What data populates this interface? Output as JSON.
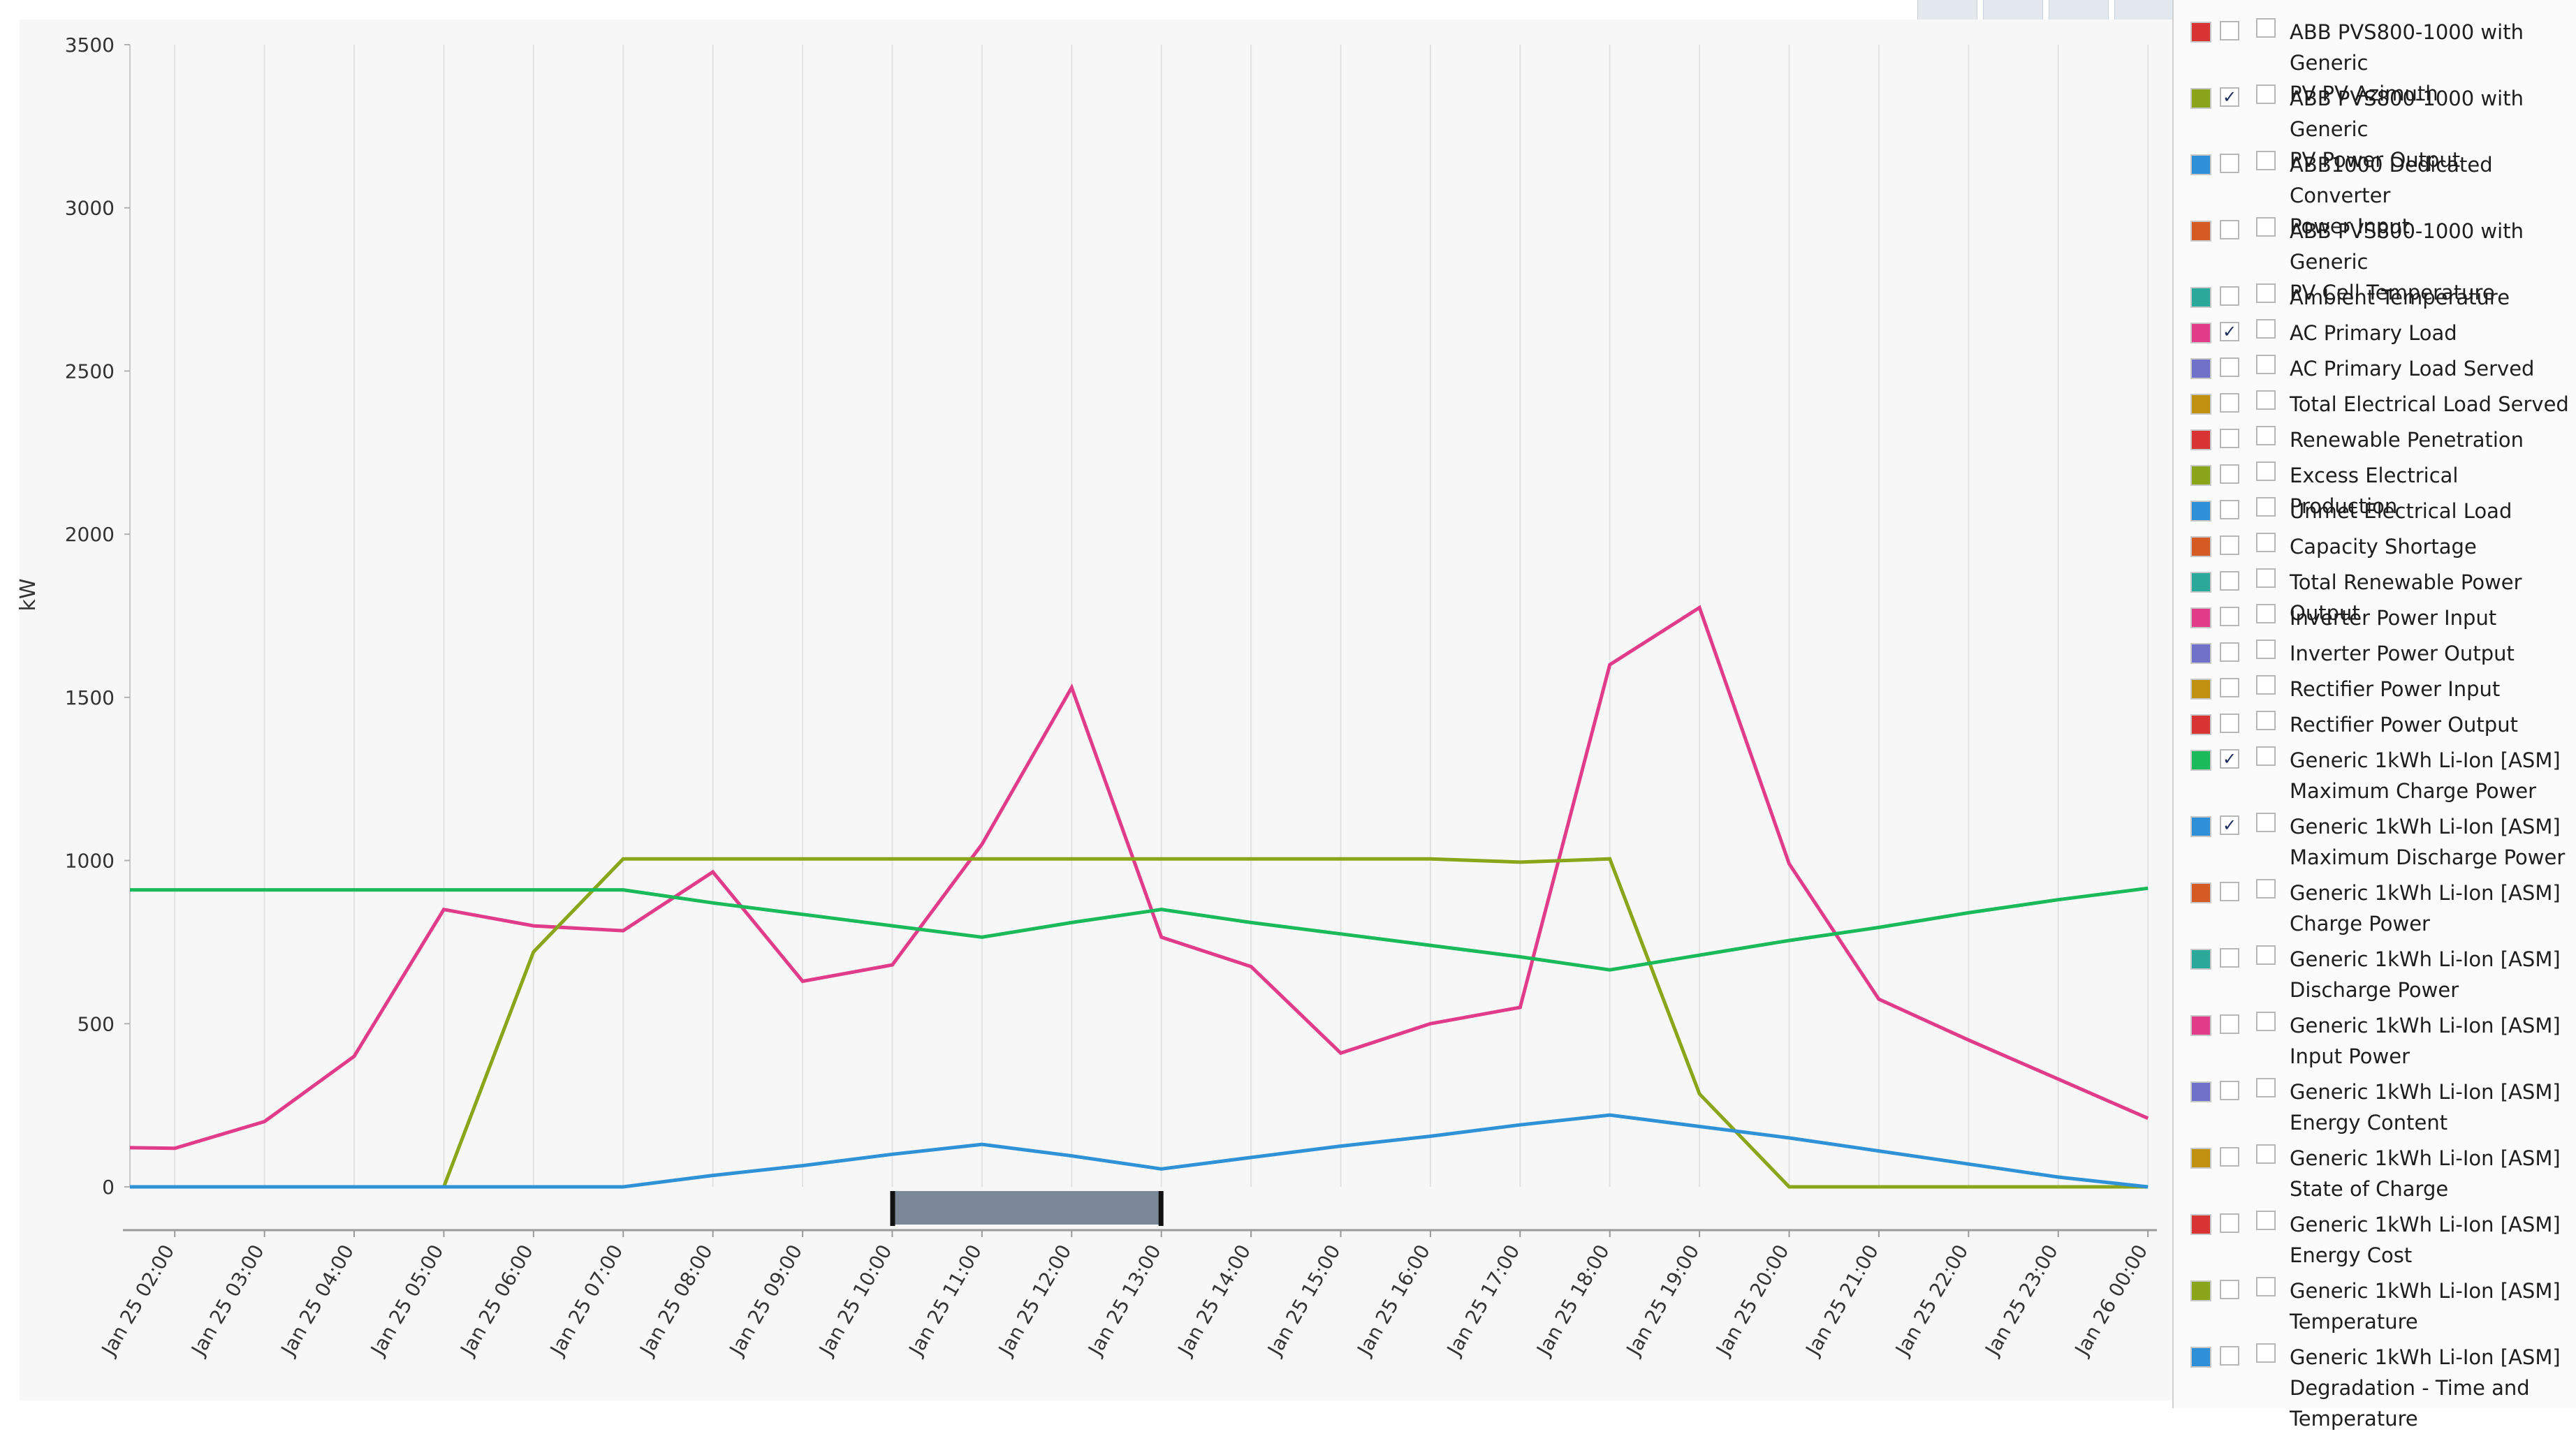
{
  "chart_data": {
    "type": "line",
    "ylabel": "kW",
    "ylim": [
      0,
      3500
    ],
    "yticks": [
      0,
      500,
      1000,
      1500,
      2000,
      2500,
      3000,
      3500
    ],
    "x": [
      1.5,
      2,
      3,
      4,
      5,
      6,
      7,
      8,
      9,
      10,
      11,
      12,
      13,
      14,
      15,
      16,
      17,
      18,
      19,
      20,
      21,
      22,
      23,
      24
    ],
    "xlim": [
      1.5,
      24.1
    ],
    "xtick_positions": [
      2,
      3,
      4,
      5,
      6,
      7,
      8,
      9,
      10,
      11,
      12,
      13,
      14,
      15,
      16,
      17,
      18,
      19,
      20,
      21,
      22,
      23,
      24
    ],
    "xtick_labels": [
      "Jan 25 02:00",
      "Jan 25 03:00",
      "Jan 25 04:00",
      "Jan 25 05:00",
      "Jan 25 06:00",
      "Jan 25 07:00",
      "Jan 25 08:00",
      "Jan 25 09:00",
      "Jan 25 10:00",
      "Jan 25 11:00",
      "Jan 25 12:00",
      "Jan 25 13:00",
      "Jan 25 14:00",
      "Jan 25 15:00",
      "Jan 25 16:00",
      "Jan 25 17:00",
      "Jan 25 18:00",
      "Jan 25 19:00",
      "Jan 25 20:00",
      "Jan 25 21:00",
      "Jan 25 22:00",
      "Jan 25 23:00",
      "Jan 26 00:00"
    ],
    "grid": true,
    "range_slider": [
      10,
      13
    ],
    "series": [
      {
        "name": "AC Primary Load",
        "color": "#e03c8a",
        "values": [
          120,
          118,
          200,
          400,
          850,
          800,
          785,
          965,
          630,
          680,
          1050,
          1530,
          765,
          675,
          410,
          500,
          550,
          1600,
          1775,
          990,
          575,
          450,
          330,
          210
        ]
      },
      {
        "name": "ABB PVS800-1000 with Generic PV Power Output",
        "color": "#8aa51a",
        "values": [
          0,
          0,
          0,
          0,
          0,
          720,
          1005,
          1005,
          1005,
          1005,
          1005,
          1005,
          1005,
          1005,
          1005,
          1005,
          995,
          1005,
          285,
          0,
          0,
          0,
          0,
          0
        ]
      },
      {
        "name": "Generic 1kWh Li-Ion [ASM] Maximum Charge Power",
        "color": "#1aba5a",
        "values": [
          910,
          910,
          910,
          910,
          910,
          910,
          910,
          870,
          835,
          800,
          765,
          810,
          850,
          810,
          775,
          740,
          705,
          665,
          710,
          755,
          795,
          840,
          880,
          915
        ]
      },
      {
        "name": "Generic 1kWh Li-Ion [ASM] Maximum Discharge Power",
        "color": "#2f92d6",
        "values": [
          0,
          0,
          0,
          0,
          0,
          0,
          0,
          35,
          65,
          100,
          130,
          95,
          55,
          90,
          125,
          155,
          190,
          220,
          185,
          150,
          110,
          70,
          30,
          0
        ]
      }
    ]
  },
  "legend": [
    {
      "label": "ABB PVS800-1000 with Generic\nPV PV Azimuth",
      "color": "#d93434",
      "checked_a": false,
      "checked_b": false
    },
    {
      "label": "ABB PVS800-1000 with Generic\nPV Power Output",
      "color": "#8aa51a",
      "checked_a": true,
      "checked_b": false
    },
    {
      "label": "ABB1000 Dedicated Converter\nPower Input",
      "color": "#2f8fd8",
      "checked_a": false,
      "checked_b": false
    },
    {
      "label": "ABB PVS800-1000 with Generic\nPV Cell Temperature",
      "color": "#d65a24",
      "checked_a": false,
      "checked_b": false
    },
    {
      "label": "Ambient Temperature",
      "color": "#2aa89a",
      "checked_a": false,
      "checked_b": false
    },
    {
      "label": "AC Primary Load",
      "color": "#e03c8a",
      "checked_a": true,
      "checked_b": false
    },
    {
      "label": "AC Primary Load Served",
      "color": "#7070c8",
      "checked_a": false,
      "checked_b": false
    },
    {
      "label": "Total Electrical Load Served",
      "color": "#c09010",
      "checked_a": false,
      "checked_b": false
    },
    {
      "label": "Renewable Penetration",
      "color": "#d93434",
      "checked_a": false,
      "checked_b": false
    },
    {
      "label": "Excess Electrical Production",
      "color": "#8aa51a",
      "checked_a": false,
      "checked_b": false
    },
    {
      "label": "Unmet Electrical Load",
      "color": "#2f8fd8",
      "checked_a": false,
      "checked_b": false
    },
    {
      "label": "Capacity Shortage",
      "color": "#d65a24",
      "checked_a": false,
      "checked_b": false
    },
    {
      "label": "Total Renewable Power Output",
      "color": "#2aa89a",
      "checked_a": false,
      "checked_b": false
    },
    {
      "label": "Inverter Power Input",
      "color": "#e03c8a",
      "checked_a": false,
      "checked_b": false
    },
    {
      "label": "Inverter Power Output",
      "color": "#7070c8",
      "checked_a": false,
      "checked_b": false
    },
    {
      "label": "Rectifier Power Input",
      "color": "#c09010",
      "checked_a": false,
      "checked_b": false
    },
    {
      "label": "Rectifier Power Output",
      "color": "#d93434",
      "checked_a": false,
      "checked_b": false
    },
    {
      "label": "Generic 1kWh Li-Ion [ASM]\nMaximum Charge Power",
      "color": "#1aba5a",
      "checked_a": true,
      "checked_b": false
    },
    {
      "label": "Generic 1kWh Li-Ion [ASM]\nMaximum Discharge Power",
      "color": "#2f8fd8",
      "checked_a": true,
      "checked_b": false
    },
    {
      "label": "Generic 1kWh Li-Ion [ASM]\nCharge Power",
      "color": "#d65a24",
      "checked_a": false,
      "checked_b": false
    },
    {
      "label": "Generic 1kWh Li-Ion [ASM]\nDischarge Power",
      "color": "#2aa89a",
      "checked_a": false,
      "checked_b": false
    },
    {
      "label": "Generic 1kWh Li-Ion [ASM]\nInput Power",
      "color": "#e03c8a",
      "checked_a": false,
      "checked_b": false
    },
    {
      "label": "Generic 1kWh Li-Ion [ASM]\nEnergy Content",
      "color": "#7070c8",
      "checked_a": false,
      "checked_b": false
    },
    {
      "label": "Generic 1kWh Li-Ion [ASM]\nState of Charge",
      "color": "#c09010",
      "checked_a": false,
      "checked_b": false
    },
    {
      "label": "Generic 1kWh Li-Ion [ASM]\nEnergy Cost",
      "color": "#d93434",
      "checked_a": false,
      "checked_b": false
    },
    {
      "label": "Generic 1kWh Li-Ion [ASM]\nTemperature",
      "color": "#8aa51a",
      "checked_a": false,
      "checked_b": false
    },
    {
      "label": "Generic 1kWh Li-Ion [ASM]\nDegradation - Time and\nTemperature",
      "color": "#2f8fd8",
      "checked_a": false,
      "checked_b": false
    }
  ]
}
